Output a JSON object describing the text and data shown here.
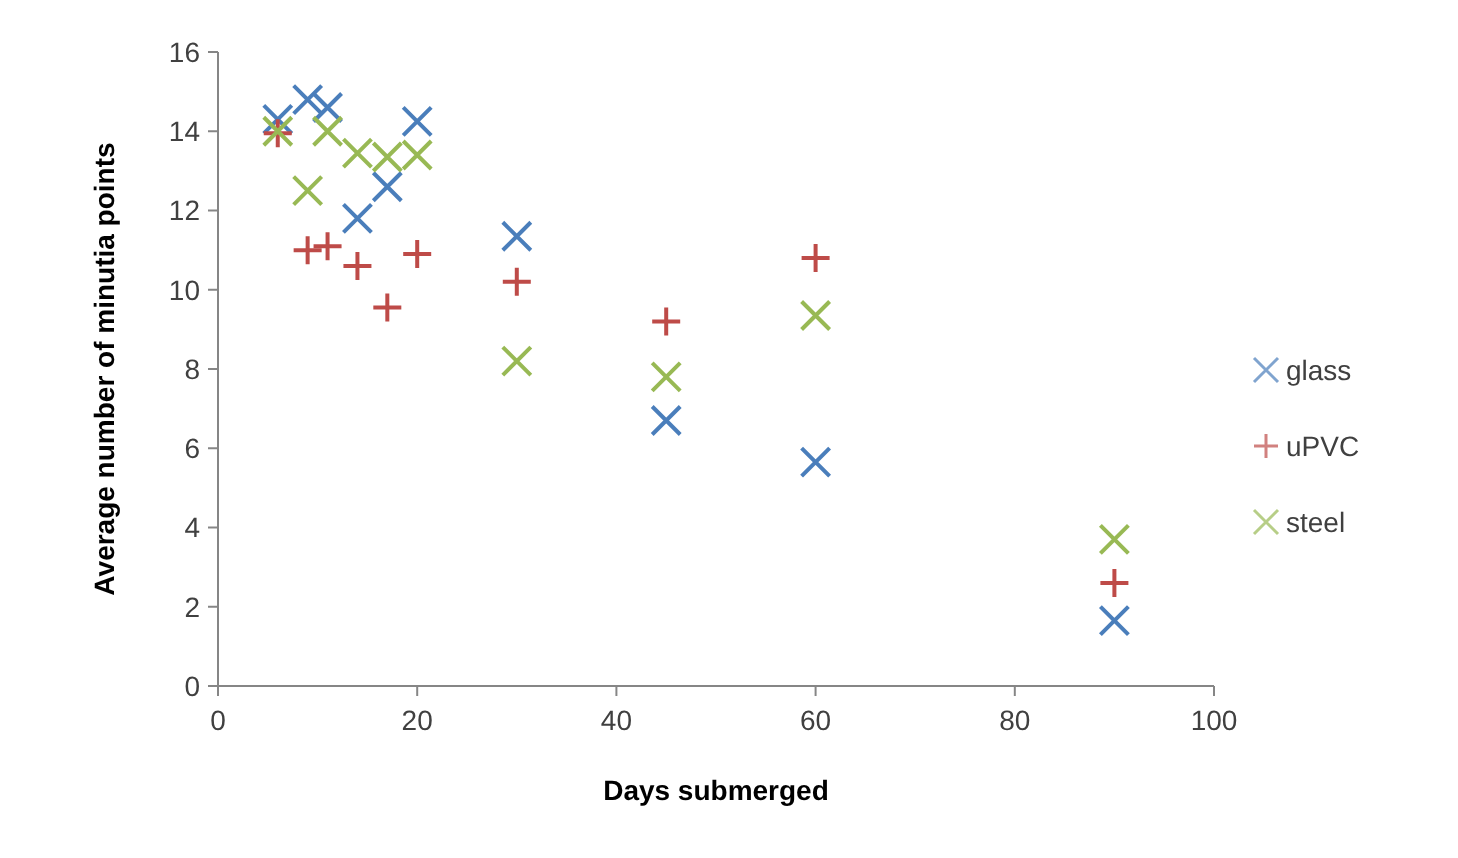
{
  "chart_data": {
    "type": "scatter",
    "xlabel": "Days submerged",
    "ylabel": "Average number of minutia points",
    "x": [
      6,
      9,
      11,
      14,
      17,
      20,
      30,
      45,
      60,
      90
    ],
    "series": [
      {
        "name": "glass",
        "color": "#4a7ebb",
        "marker": "x",
        "values": [
          14.3,
          14.8,
          14.6,
          11.8,
          12.6,
          14.25,
          11.35,
          6.7,
          5.65,
          1.65
        ]
      },
      {
        "name": "uPVC",
        "color": "#be4b48",
        "marker": "cross",
        "values": [
          13.95,
          11.0,
          11.1,
          10.6,
          9.55,
          10.9,
          10.2,
          9.2,
          10.8,
          2.6
        ]
      },
      {
        "name": "steel",
        "color": "#98b954",
        "marker": "x",
        "values": [
          14.0,
          12.5,
          14.0,
          13.45,
          13.35,
          13.4,
          8.2,
          7.8,
          9.35,
          3.7
        ]
      }
    ],
    "xlim": [
      0,
      100
    ],
    "xticks": [
      0,
      20,
      40,
      60,
      80,
      100
    ],
    "ylim": [
      0,
      16
    ],
    "yticks": [
      0,
      2,
      4,
      6,
      8,
      10,
      12,
      14,
      16
    ],
    "grid": false,
    "legend": "right"
  }
}
